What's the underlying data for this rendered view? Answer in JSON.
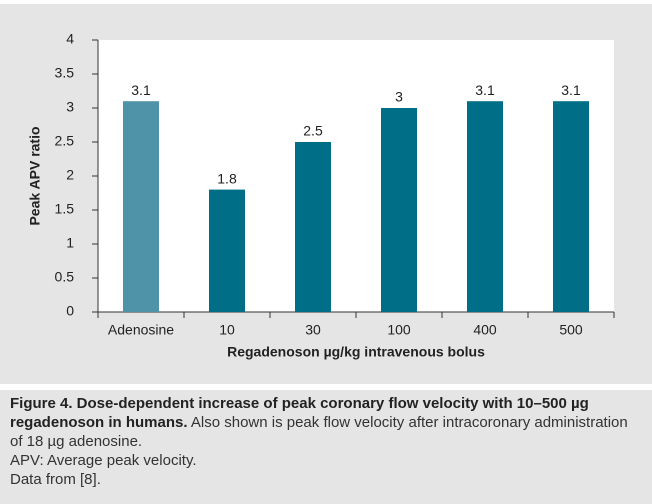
{
  "chart_data": {
    "type": "bar",
    "categories": [
      "Adenosine",
      "10",
      "30",
      "100",
      "400",
      "500"
    ],
    "values": [
      3.1,
      1.8,
      2.5,
      3,
      3.1,
      3.1
    ],
    "colors": [
      "#4f93a9",
      "#006e87",
      "#006e87",
      "#006e87",
      "#006e87",
      "#006e87"
    ],
    "ylim": [
      0,
      4
    ],
    "yticks": [
      0,
      0.5,
      1,
      1.5,
      2,
      2.5,
      3,
      3.5,
      4
    ],
    "ylabel": "Peak APV ratio",
    "xlabel": "Regadenoson µg/kg intravenous bolus",
    "grid": false
  },
  "caption": {
    "title": "Figure 4. Dose-dependent increase of peak coronary flow velocity with 10–500 µg regadenoson in humans.",
    "text": "Also shown is peak flow velocity after intracoronary administration of 18 µg adenosine.",
    "abbreviation": "APV: Average peak velocity.",
    "source": "Data from [8]."
  }
}
